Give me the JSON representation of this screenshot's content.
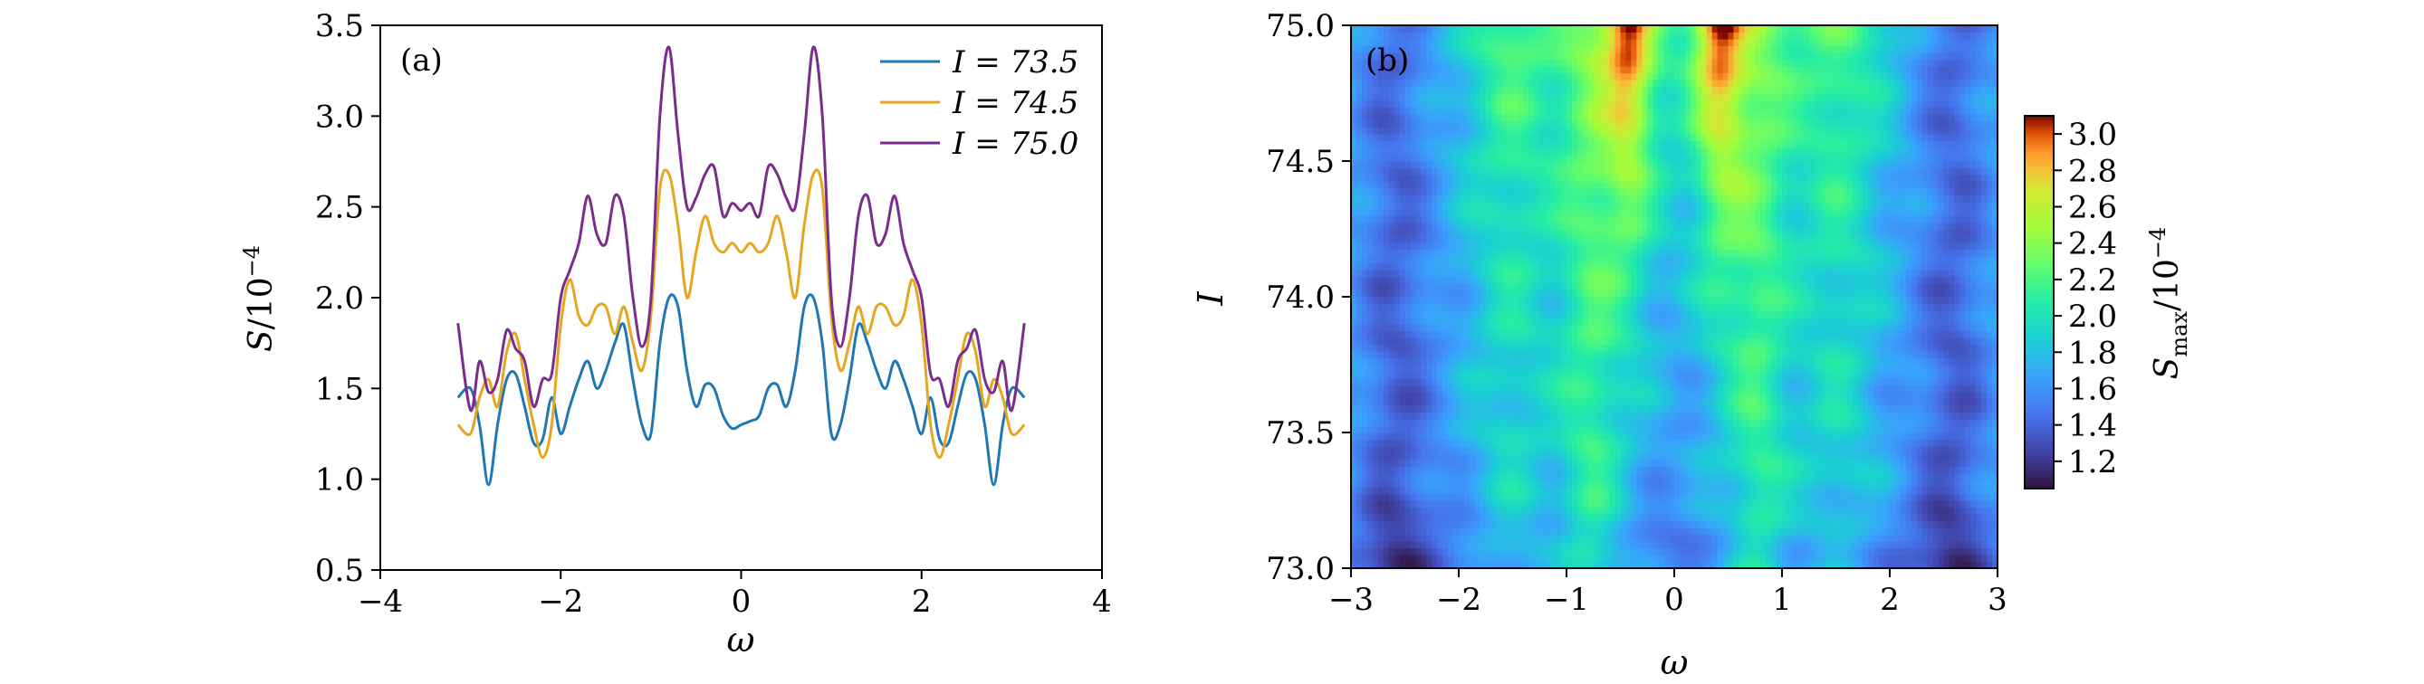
{
  "chart_data": [
    {
      "type": "line",
      "panel_label": "(a)",
      "xlabel": "ω",
      "ylabel": "S/10⁻⁴",
      "xlim": [
        -4,
        4
      ],
      "ylim": [
        0.5,
        3.5
      ],
      "xticks": [
        -4,
        -2,
        0,
        2,
        4
      ],
      "xtick_labels": [
        "−4",
        "−2",
        "0",
        "2",
        "4"
      ],
      "yticks": [
        0.5,
        1.0,
        1.5,
        2.0,
        2.5,
        3.0,
        3.5
      ],
      "ytick_labels": [
        "0.5",
        "1.0",
        "1.5",
        "2.0",
        "2.5",
        "3.0",
        "3.5"
      ],
      "legend_position": "top-right",
      "series": [
        {
          "name": "I = 73.5",
          "color": "#1f77b4",
          "x": [
            -3.14,
            -3.0,
            -2.9,
            -2.8,
            -2.7,
            -2.6,
            -2.5,
            -2.4,
            -2.3,
            -2.2,
            -2.1,
            -2.0,
            -1.9,
            -1.8,
            -1.7,
            -1.6,
            -1.5,
            -1.4,
            -1.3,
            -1.2,
            -1.1,
            -1.0,
            -0.9,
            -0.8,
            -0.7,
            -0.6,
            -0.5,
            -0.4,
            -0.3,
            -0.2,
            -0.1,
            0.0,
            0.1,
            0.2,
            0.3,
            0.4,
            0.5,
            0.6,
            0.7,
            0.8,
            0.9,
            1.0,
            1.1,
            1.2,
            1.3,
            1.4,
            1.5,
            1.6,
            1.7,
            1.8,
            1.9,
            2.0,
            2.1,
            2.2,
            2.3,
            2.4,
            2.5,
            2.6,
            2.7,
            2.8,
            2.9,
            3.0,
            3.14
          ],
          "values": [
            1.45,
            1.5,
            1.3,
            0.97,
            1.3,
            1.55,
            1.58,
            1.4,
            1.2,
            1.22,
            1.45,
            1.25,
            1.4,
            1.55,
            1.65,
            1.5,
            1.6,
            1.75,
            1.85,
            1.55,
            1.3,
            1.25,
            1.75,
            2.0,
            1.95,
            1.6,
            1.4,
            1.52,
            1.5,
            1.35,
            1.28,
            1.3,
            1.32,
            1.35,
            1.5,
            1.52,
            1.4,
            1.6,
            1.95,
            2.0,
            1.75,
            1.25,
            1.3,
            1.55,
            1.85,
            1.75,
            1.6,
            1.5,
            1.65,
            1.55,
            1.4,
            1.25,
            1.45,
            1.22,
            1.2,
            1.4,
            1.58,
            1.55,
            1.3,
            0.97,
            1.3,
            1.5,
            1.45
          ]
        },
        {
          "name": "I = 74.5",
          "color": "#e6a621",
          "x": [
            -3.14,
            -3.0,
            -2.9,
            -2.8,
            -2.7,
            -2.6,
            -2.5,
            -2.4,
            -2.3,
            -2.2,
            -2.1,
            -2.0,
            -1.9,
            -1.8,
            -1.7,
            -1.6,
            -1.5,
            -1.4,
            -1.3,
            -1.2,
            -1.1,
            -1.0,
            -0.9,
            -0.8,
            -0.7,
            -0.6,
            -0.5,
            -0.4,
            -0.3,
            -0.2,
            -0.1,
            0.0,
            0.1,
            0.2,
            0.3,
            0.4,
            0.5,
            0.6,
            0.7,
            0.8,
            0.9,
            1.0,
            1.1,
            1.2,
            1.3,
            1.4,
            1.5,
            1.6,
            1.7,
            1.8,
            1.9,
            2.0,
            2.1,
            2.2,
            2.3,
            2.4,
            2.5,
            2.6,
            2.7,
            2.8,
            2.9,
            3.0,
            3.14
          ],
          "values": [
            1.3,
            1.25,
            1.45,
            1.55,
            1.4,
            1.7,
            1.8,
            1.55,
            1.3,
            1.12,
            1.3,
            1.85,
            2.1,
            1.9,
            1.85,
            1.95,
            1.95,
            1.8,
            1.95,
            1.75,
            1.6,
            1.9,
            2.6,
            2.68,
            2.4,
            2.0,
            2.25,
            2.45,
            2.3,
            2.25,
            2.3,
            2.25,
            2.3,
            2.25,
            2.3,
            2.45,
            2.25,
            2.0,
            2.4,
            2.68,
            2.6,
            1.9,
            1.6,
            1.75,
            1.95,
            1.8,
            1.95,
            1.95,
            1.85,
            1.9,
            2.1,
            1.85,
            1.3,
            1.12,
            1.3,
            1.55,
            1.8,
            1.7,
            1.4,
            1.55,
            1.45,
            1.25,
            1.3
          ]
        },
        {
          "name": "I = 75.0",
          "color": "#7b2d8e",
          "x": [
            -3.14,
            -3.0,
            -2.9,
            -2.8,
            -2.7,
            -2.6,
            -2.5,
            -2.4,
            -2.3,
            -2.2,
            -2.1,
            -2.0,
            -1.9,
            -1.8,
            -1.7,
            -1.6,
            -1.5,
            -1.4,
            -1.3,
            -1.2,
            -1.1,
            -1.0,
            -0.9,
            -0.8,
            -0.7,
            -0.6,
            -0.5,
            -0.4,
            -0.3,
            -0.2,
            -0.1,
            0.0,
            0.1,
            0.2,
            0.3,
            0.4,
            0.5,
            0.6,
            0.7,
            0.8,
            0.9,
            1.0,
            1.1,
            1.2,
            1.3,
            1.4,
            1.5,
            1.6,
            1.7,
            1.8,
            1.9,
            2.0,
            2.1,
            2.2,
            2.3,
            2.4,
            2.5,
            2.6,
            2.7,
            2.8,
            2.9,
            3.0,
            3.14
          ],
          "values": [
            1.86,
            1.38,
            1.65,
            1.48,
            1.55,
            1.82,
            1.72,
            1.65,
            1.4,
            1.55,
            1.58,
            2.0,
            2.15,
            2.3,
            2.56,
            2.35,
            2.3,
            2.56,
            2.45,
            2.0,
            1.73,
            2.0,
            3.0,
            3.38,
            2.9,
            2.5,
            2.55,
            2.68,
            2.72,
            2.45,
            2.52,
            2.48,
            2.52,
            2.45,
            2.72,
            2.68,
            2.55,
            2.5,
            2.9,
            3.38,
            3.0,
            2.0,
            1.73,
            2.0,
            2.45,
            2.56,
            2.3,
            2.35,
            2.56,
            2.3,
            2.15,
            2.0,
            1.58,
            1.55,
            1.4,
            1.65,
            1.72,
            1.82,
            1.55,
            1.48,
            1.65,
            1.38,
            1.86
          ]
        }
      ]
    },
    {
      "type": "heatmap",
      "panel_label": "(b)",
      "xlabel": "ω",
      "ylabel": "I",
      "xlim": [
        -3,
        3
      ],
      "ylim": [
        73.0,
        75.0
      ],
      "xticks": [
        -3,
        -2,
        -1,
        0,
        1,
        2,
        3
      ],
      "xtick_labels": [
        "−3",
        "−2",
        "−1",
        "0",
        "1",
        "2",
        "3"
      ],
      "yticks": [
        73.0,
        73.5,
        74.0,
        74.5,
        75.0
      ],
      "ytick_labels": [
        "73.0",
        "73.5",
        "74.0",
        "74.5",
        "75.0"
      ],
      "colormap": "turbo",
      "colorbar": {
        "label": "S_max/10⁻⁴",
        "label_main": "S",
        "label_sub": "max",
        "label_rest": "/10",
        "label_exp": "−4",
        "range": [
          1.05,
          3.1
        ],
        "ticks": [
          1.2,
          1.4,
          1.6,
          1.8,
          2.0,
          2.2,
          2.4,
          2.6,
          2.8,
          3.0
        ],
        "tick_labels": [
          "1.2",
          "1.4",
          "1.6",
          "1.8",
          "2.0",
          "2.2",
          "2.4",
          "2.6",
          "2.8",
          "3.0"
        ]
      },
      "description": "S_max over (ω, I); highest (~3.0) near ω ≈ ±0.4 for I > 74.2, lowest (~1.2) near ω ≈ ±2.6 for I < 73.8"
    }
  ]
}
